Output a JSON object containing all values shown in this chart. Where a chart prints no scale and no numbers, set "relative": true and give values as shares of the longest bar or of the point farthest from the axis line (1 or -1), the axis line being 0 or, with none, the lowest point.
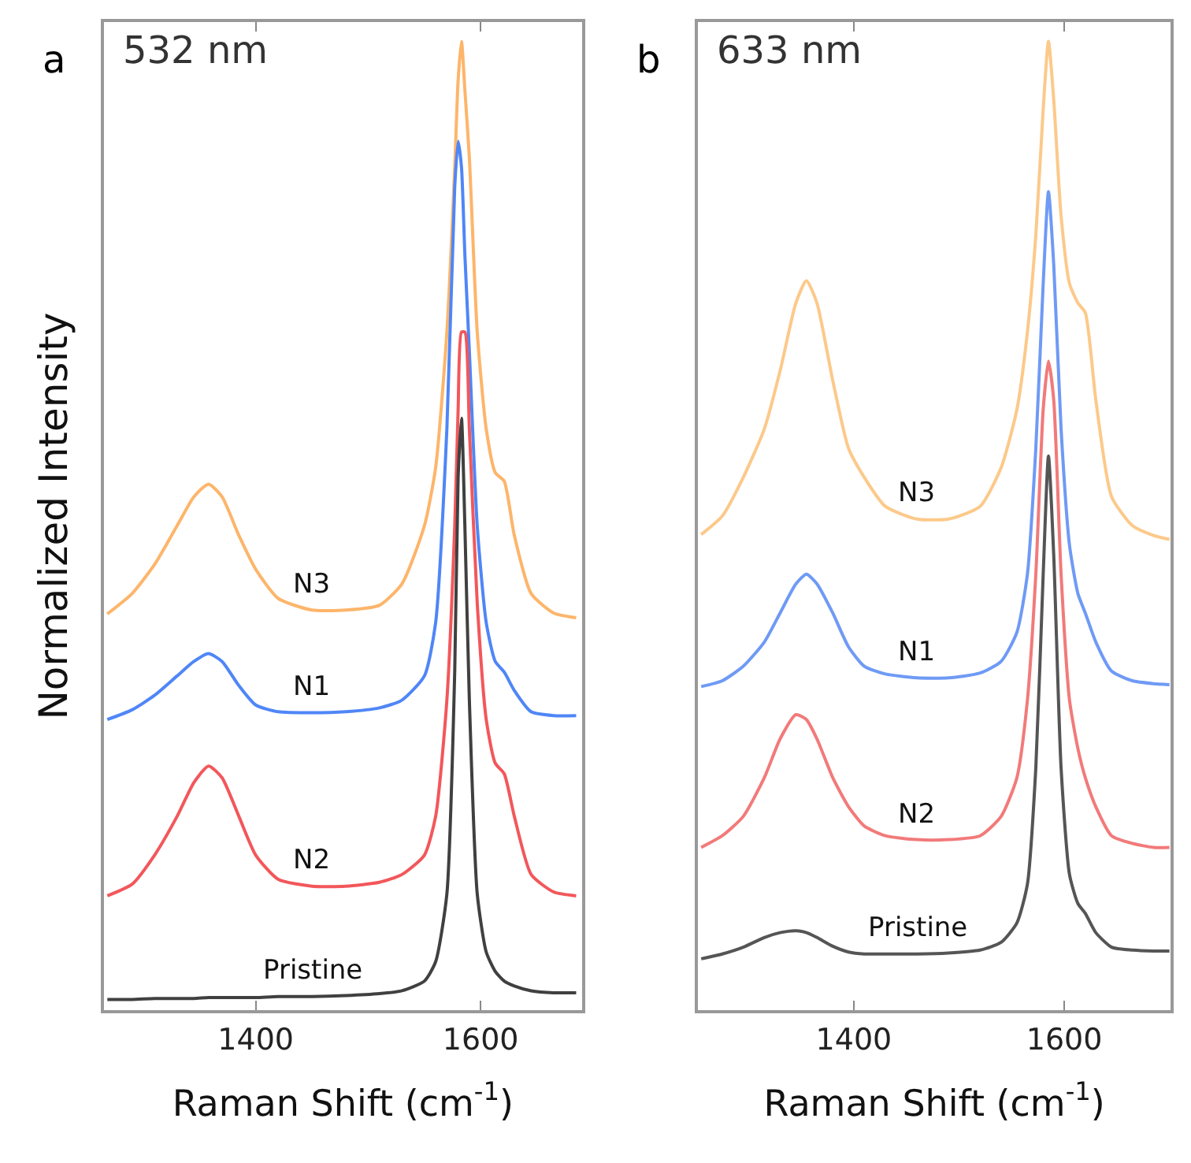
{
  "chart_data": [
    {
      "type": "line",
      "title": "a",
      "annotations": [
        "532 nm"
      ],
      "xlabel": "Raman Shift (cm$^{-1}$)",
      "ylabel": "Normalized Intensity",
      "relative": true,
      "xlim": [
        1265,
        1690
      ],
      "xticks": [
        1400,
        1600
      ],
      "legend": false,
      "x": [
        1268,
        1290,
        1310,
        1330,
        1345,
        1358,
        1370,
        1385,
        1400,
        1420,
        1450,
        1480,
        1510,
        1530,
        1550,
        1560,
        1570,
        1577,
        1580,
        1583,
        1586,
        1590,
        1597,
        1605,
        1613,
        1621,
        1630,
        1645,
        1665,
        1685
      ],
      "series": [
        {
          "name": "N3",
          "color": "#fdb56a",
          "values": [
            0.409,
            0.43,
            0.46,
            0.5,
            0.53,
            0.543,
            0.53,
            0.49,
            0.455,
            0.425,
            0.413,
            0.413,
            0.418,
            0.44,
            0.5,
            0.56,
            0.7,
            0.87,
            0.96,
            1.0,
            0.95,
            0.88,
            0.7,
            0.6,
            0.555,
            0.546,
            0.49,
            0.43,
            0.41,
            0.405
          ]
        },
        {
          "name": "N1",
          "color": "#4f86f7",
          "values": [
            0.3,
            0.31,
            0.325,
            0.345,
            0.36,
            0.368,
            0.36,
            0.335,
            0.315,
            0.308,
            0.307,
            0.308,
            0.312,
            0.32,
            0.345,
            0.4,
            0.6,
            0.85,
            0.897,
            0.87,
            0.78,
            0.68,
            0.5,
            0.4,
            0.36,
            0.349,
            0.33,
            0.308,
            0.304,
            0.304
          ]
        },
        {
          "name": "N2",
          "color": "#f2575b",
          "values": [
            0.118,
            0.13,
            0.16,
            0.2,
            0.235,
            0.252,
            0.24,
            0.2,
            0.16,
            0.135,
            0.128,
            0.128,
            0.132,
            0.14,
            0.16,
            0.2,
            0.32,
            0.5,
            0.62,
            0.7,
            0.7,
            0.6,
            0.42,
            0.3,
            0.255,
            0.244,
            0.2,
            0.14,
            0.122,
            0.118
          ]
        },
        {
          "name": "Pristine",
          "color": "#404040",
          "values": [
            0.011,
            0.011,
            0.012,
            0.012,
            0.012,
            0.013,
            0.013,
            0.013,
            0.013,
            0.014,
            0.014,
            0.015,
            0.017,
            0.02,
            0.03,
            0.05,
            0.12,
            0.35,
            0.55,
            0.611,
            0.5,
            0.32,
            0.12,
            0.06,
            0.04,
            0.03,
            0.025,
            0.02,
            0.018,
            0.018
          ]
        }
      ]
    },
    {
      "type": "line",
      "title": "b",
      "annotations": [
        "633 nm"
      ],
      "xlabel": "Raman Shift (cm$^{-1}$)",
      "relative": true,
      "xlim": [
        1252,
        1701
      ],
      "xticks": [
        1400,
        1600
      ],
      "legend": false,
      "x": [
        1255,
        1275,
        1295,
        1315,
        1330,
        1345,
        1355,
        1365,
        1380,
        1395,
        1410,
        1430,
        1460,
        1490,
        1520,
        1540,
        1555,
        1565,
        1573,
        1580,
        1585,
        1590,
        1597,
        1605,
        1613,
        1620,
        1630,
        1645,
        1665,
        1685,
        1700
      ],
      "series": [
        {
          "name": "N3",
          "color": "#fcc98a",
          "values": [
            0.491,
            0.51,
            0.55,
            0.6,
            0.66,
            0.73,
            0.753,
            0.73,
            0.65,
            0.58,
            0.55,
            0.52,
            0.507,
            0.507,
            0.52,
            0.56,
            0.62,
            0.7,
            0.8,
            0.93,
            1.0,
            0.94,
            0.82,
            0.75,
            0.73,
            0.72,
            0.63,
            0.53,
            0.5,
            0.49,
            0.486
          ]
        },
        {
          "name": "N1",
          "color": "#6f9af5",
          "values": [
            0.334,
            0.34,
            0.355,
            0.38,
            0.41,
            0.44,
            0.45,
            0.44,
            0.41,
            0.375,
            0.355,
            0.347,
            0.343,
            0.343,
            0.348,
            0.36,
            0.39,
            0.45,
            0.58,
            0.75,
            0.845,
            0.77,
            0.6,
            0.48,
            0.43,
            0.41,
            0.38,
            0.35,
            0.34,
            0.337,
            0.336
          ]
        },
        {
          "name": "N2",
          "color": "#f27a7a",
          "values": [
            0.168,
            0.18,
            0.2,
            0.24,
            0.28,
            0.305,
            0.3,
            0.28,
            0.24,
            0.21,
            0.19,
            0.18,
            0.176,
            0.176,
            0.18,
            0.2,
            0.24,
            0.32,
            0.45,
            0.62,
            0.67,
            0.63,
            0.45,
            0.32,
            0.27,
            0.24,
            0.21,
            0.18,
            0.172,
            0.168,
            0.168
          ]
        },
        {
          "name": "Pristine",
          "color": "#555555",
          "values": [
            0.053,
            0.058,
            0.065,
            0.075,
            0.08,
            0.082,
            0.08,
            0.075,
            0.066,
            0.06,
            0.058,
            0.058,
            0.058,
            0.059,
            0.062,
            0.07,
            0.09,
            0.13,
            0.25,
            0.45,
            0.572,
            0.47,
            0.25,
            0.14,
            0.11,
            0.1,
            0.08,
            0.065,
            0.062,
            0.061,
            0.061
          ]
        }
      ]
    }
  ]
}
